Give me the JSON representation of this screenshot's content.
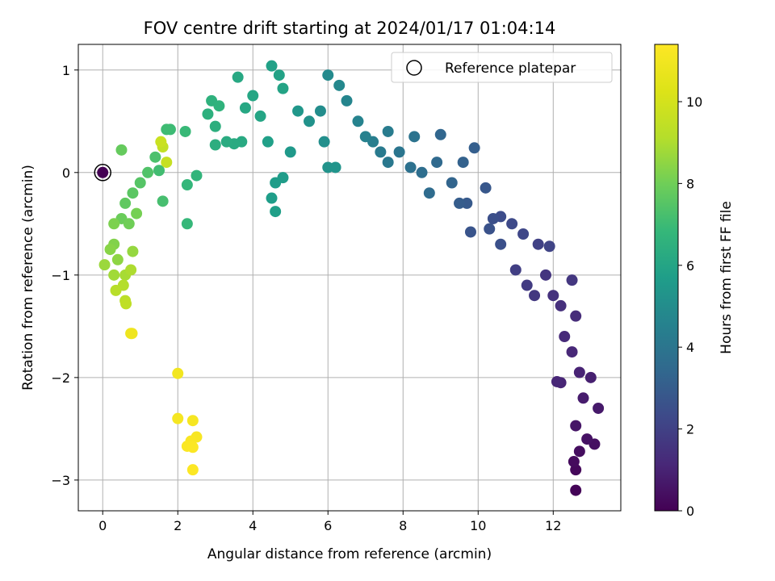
{
  "chart_data": {
    "type": "scatter",
    "title": "FOV centre drift starting at 2024/01/17 01:04:14",
    "xlabel": "Angular distance from reference (arcmin)",
    "ylabel": "Rotation from reference (arcmin)",
    "xlim": [
      -0.65,
      13.8
    ],
    "ylim": [
      -3.3,
      1.25
    ],
    "xticks": [
      0,
      2,
      4,
      6,
      8,
      10,
      12
    ],
    "yticks": [
      -3,
      -2,
      -1,
      0,
      1
    ],
    "grid": true,
    "legend": {
      "placement": "top-right",
      "entries": [
        "Reference platepar"
      ]
    },
    "colorbar": {
      "label": "Hours from first FF file",
      "min": 0,
      "max": 11.4,
      "ticks": [
        0,
        2,
        4,
        6,
        8,
        10
      ],
      "colormap": "viridis"
    },
    "reference_point": {
      "x": 0,
      "y": 0,
      "t": 0
    },
    "points": [
      {
        "x": 12.6,
        "y": -3.1,
        "t": 0.1
      },
      {
        "x": 12.6,
        "y": -2.9,
        "t": 0.2
      },
      {
        "x": 12.55,
        "y": -2.82,
        "t": 0.3
      },
      {
        "x": 12.7,
        "y": -2.72,
        "t": 0.35
      },
      {
        "x": 13.1,
        "y": -2.65,
        "t": 0.4
      },
      {
        "x": 12.9,
        "y": -2.6,
        "t": 0.5
      },
      {
        "x": 12.6,
        "y": -2.47,
        "t": 0.6
      },
      {
        "x": 13.2,
        "y": -2.3,
        "t": 0.7
      },
      {
        "x": 12.8,
        "y": -2.2,
        "t": 0.8
      },
      {
        "x": 13.0,
        "y": -2.0,
        "t": 0.9
      },
      {
        "x": 12.7,
        "y": -1.95,
        "t": 1.0
      },
      {
        "x": 12.2,
        "y": -2.05,
        "t": 1.05
      },
      {
        "x": 12.1,
        "y": -2.04,
        "t": 1.1
      },
      {
        "x": 12.5,
        "y": -1.75,
        "t": 1.15
      },
      {
        "x": 12.3,
        "y": -1.6,
        "t": 1.2
      },
      {
        "x": 12.6,
        "y": -1.4,
        "t": 1.3
      },
      {
        "x": 12.2,
        "y": -1.3,
        "t": 1.4
      },
      {
        "x": 12.0,
        "y": -1.2,
        "t": 1.5
      },
      {
        "x": 11.8,
        "y": -1.0,
        "t": 1.6
      },
      {
        "x": 12.5,
        "y": -1.05,
        "t": 1.65
      },
      {
        "x": 11.5,
        "y": -1.2,
        "t": 1.7
      },
      {
        "x": 11.3,
        "y": -1.1,
        "t": 1.8
      },
      {
        "x": 11.0,
        "y": -0.95,
        "t": 1.9
      },
      {
        "x": 11.6,
        "y": -0.7,
        "t": 2.0
      },
      {
        "x": 11.9,
        "y": -0.72,
        "t": 2.1
      },
      {
        "x": 11.2,
        "y": -0.6,
        "t": 2.2
      },
      {
        "x": 10.9,
        "y": -0.5,
        "t": 2.3
      },
      {
        "x": 10.6,
        "y": -0.43,
        "t": 2.4
      },
      {
        "x": 10.4,
        "y": -0.45,
        "t": 2.5
      },
      {
        "x": 10.6,
        "y": -0.7,
        "t": 2.55
      },
      {
        "x": 10.3,
        "y": -0.55,
        "t": 2.6
      },
      {
        "x": 9.8,
        "y": -0.58,
        "t": 2.7
      },
      {
        "x": 10.2,
        "y": -0.15,
        "t": 2.8
      },
      {
        "x": 9.7,
        "y": -0.3,
        "t": 2.9
      },
      {
        "x": 9.5,
        "y": -0.3,
        "t": 3.0
      },
      {
        "x": 9.9,
        "y": 0.24,
        "t": 3.1
      },
      {
        "x": 9.6,
        "y": 0.1,
        "t": 3.2
      },
      {
        "x": 9.3,
        "y": -0.1,
        "t": 3.3
      },
      {
        "x": 9.0,
        "y": 0.37,
        "t": 3.4
      },
      {
        "x": 8.9,
        "y": 0.1,
        "t": 3.5
      },
      {
        "x": 8.7,
        "y": -0.2,
        "t": 3.6
      },
      {
        "x": 8.5,
        "y": 0.0,
        "t": 3.7
      },
      {
        "x": 8.2,
        "y": 0.05,
        "t": 3.8
      },
      {
        "x": 8.3,
        "y": 0.35,
        "t": 3.9
      },
      {
        "x": 7.9,
        "y": 0.2,
        "t": 4.0
      },
      {
        "x": 7.6,
        "y": 0.1,
        "t": 4.1
      },
      {
        "x": 7.4,
        "y": 0.2,
        "t": 4.2
      },
      {
        "x": 7.6,
        "y": 0.4,
        "t": 4.3
      },
      {
        "x": 7.2,
        "y": 0.3,
        "t": 4.4
      },
      {
        "x": 7.0,
        "y": 0.35,
        "t": 4.5
      },
      {
        "x": 6.8,
        "y": 0.5,
        "t": 4.6
      },
      {
        "x": 6.5,
        "y": 0.7,
        "t": 4.7
      },
      {
        "x": 6.3,
        "y": 0.85,
        "t": 4.8
      },
      {
        "x": 6.0,
        "y": 0.95,
        "t": 4.9
      },
      {
        "x": 5.8,
        "y": 0.6,
        "t": 5.0
      },
      {
        "x": 5.9,
        "y": 0.3,
        "t": 5.1
      },
      {
        "x": 5.5,
        "y": 0.5,
        "t": 5.2
      },
      {
        "x": 6.0,
        "y": 0.05,
        "t": 5.25
      },
      {
        "x": 6.2,
        "y": 0.05,
        "t": 5.3
      },
      {
        "x": 5.2,
        "y": 0.6,
        "t": 5.4
      },
      {
        "x": 5.0,
        "y": 0.2,
        "t": 5.5
      },
      {
        "x": 4.8,
        "y": -0.05,
        "t": 5.6
      },
      {
        "x": 4.6,
        "y": -0.1,
        "t": 5.65
      },
      {
        "x": 4.5,
        "y": -0.25,
        "t": 5.7
      },
      {
        "x": 4.6,
        "y": -0.38,
        "t": 5.75
      },
      {
        "x": 4.4,
        "y": 0.3,
        "t": 5.8
      },
      {
        "x": 4.5,
        "y": 1.04,
        "t": 5.85
      },
      {
        "x": 4.7,
        "y": 0.95,
        "t": 5.9
      },
      {
        "x": 4.8,
        "y": 0.82,
        "t": 5.95
      },
      {
        "x": 4.2,
        "y": 0.55,
        "t": 6.0
      },
      {
        "x": 4.0,
        "y": 0.75,
        "t": 6.05
      },
      {
        "x": 3.8,
        "y": 0.63,
        "t": 6.1
      },
      {
        "x": 3.6,
        "y": 0.93,
        "t": 6.15
      },
      {
        "x": 3.7,
        "y": 0.3,
        "t": 6.2
      },
      {
        "x": 3.5,
        "y": 0.28,
        "t": 6.25
      },
      {
        "x": 3.3,
        "y": 0.3,
        "t": 6.3
      },
      {
        "x": 3.0,
        "y": 0.27,
        "t": 6.4
      },
      {
        "x": 3.0,
        "y": 0.45,
        "t": 6.45
      },
      {
        "x": 2.8,
        "y": 0.57,
        "t": 6.5
      },
      {
        "x": 2.9,
        "y": 0.7,
        "t": 6.55
      },
      {
        "x": 3.1,
        "y": 0.65,
        "t": 6.6
      },
      {
        "x": 2.5,
        "y": -0.03,
        "t": 6.7
      },
      {
        "x": 2.25,
        "y": -0.12,
        "t": 6.8
      },
      {
        "x": 2.25,
        "y": -0.5,
        "t": 6.85
      },
      {
        "x": 2.2,
        "y": 0.4,
        "t": 6.9
      },
      {
        "x": 1.8,
        "y": 0.42,
        "t": 7.0
      },
      {
        "x": 1.7,
        "y": 0.42,
        "t": 7.05
      },
      {
        "x": 1.5,
        "y": 0.02,
        "t": 7.1
      },
      {
        "x": 1.6,
        "y": -0.28,
        "t": 7.2
      },
      {
        "x": 1.4,
        "y": 0.15,
        "t": 7.3
      },
      {
        "x": 1.2,
        "y": 0.0,
        "t": 7.4
      },
      {
        "x": 1.0,
        "y": -0.1,
        "t": 7.5
      },
      {
        "x": 0.8,
        "y": -0.2,
        "t": 7.6
      },
      {
        "x": 0.6,
        "y": -0.3,
        "t": 7.7
      },
      {
        "x": 0.5,
        "y": 0.22,
        "t": 7.8
      },
      {
        "x": 0.5,
        "y": -0.45,
        "t": 7.9
      },
      {
        "x": 0.7,
        "y": -0.5,
        "t": 8.0
      },
      {
        "x": 0.9,
        "y": -0.4,
        "t": 8.1
      },
      {
        "x": 0.3,
        "y": -0.5,
        "t": 8.2
      },
      {
        "x": 0.3,
        "y": -0.7,
        "t": 8.3
      },
      {
        "x": 0.2,
        "y": -0.75,
        "t": 8.4
      },
      {
        "x": 0.4,
        "y": -0.85,
        "t": 8.5
      },
      {
        "x": 0.8,
        "y": -0.77,
        "t": 8.6
      },
      {
        "x": 0.05,
        "y": -0.9,
        "t": 8.7
      },
      {
        "x": 0.3,
        "y": -1.0,
        "t": 8.8
      },
      {
        "x": 0.6,
        "y": -1.0,
        "t": 8.9
      },
      {
        "x": 0.75,
        "y": -0.95,
        "t": 9.0
      },
      {
        "x": 0.55,
        "y": -1.1,
        "t": 9.1
      },
      {
        "x": 0.35,
        "y": -1.15,
        "t": 9.2
      },
      {
        "x": 0.6,
        "y": -1.25,
        "t": 9.3
      },
      {
        "x": 0.62,
        "y": -1.28,
        "t": 9.4
      },
      {
        "x": 1.6,
        "y": 0.25,
        "t": 9.5
      },
      {
        "x": 1.7,
        "y": 0.1,
        "t": 9.6
      },
      {
        "x": 1.55,
        "y": 0.3,
        "t": 9.7
      },
      {
        "x": 0.75,
        "y": -1.57,
        "t": 10.8
      },
      {
        "x": 0.78,
        "y": -1.57,
        "t": 10.9
      },
      {
        "x": 2.0,
        "y": -1.96,
        "t": 11.0
      },
      {
        "x": 2.0,
        "y": -2.4,
        "t": 11.1
      },
      {
        "x": 2.4,
        "y": -2.42,
        "t": 11.15
      },
      {
        "x": 2.5,
        "y": -2.58,
        "t": 11.2
      },
      {
        "x": 2.35,
        "y": -2.62,
        "t": 11.25
      },
      {
        "x": 2.25,
        "y": -2.67,
        "t": 11.3
      },
      {
        "x": 2.4,
        "y": -2.68,
        "t": 11.32
      },
      {
        "x": 2.4,
        "y": -2.9,
        "t": 11.35
      }
    ]
  }
}
